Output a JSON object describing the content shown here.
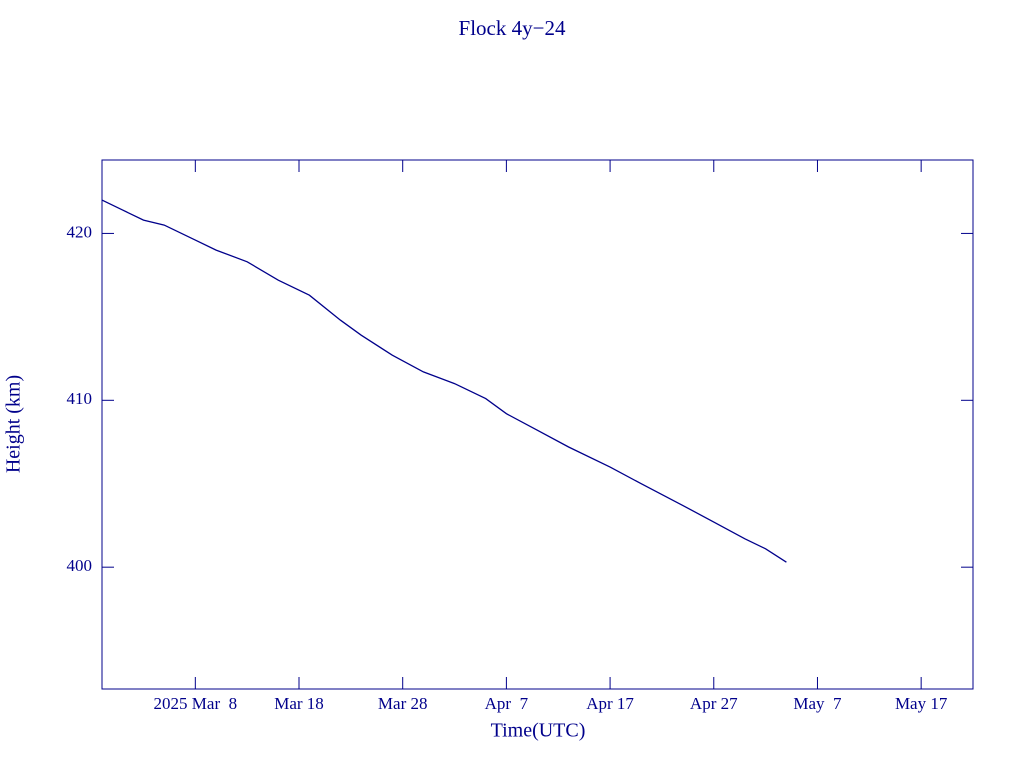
{
  "chart_data": {
    "type": "line",
    "title": "Flock 4y−24",
    "x_label": "Time(UTC)",
    "y_label": "Height (km)",
    "x": [
      "2025-02-27",
      "2025-03-01",
      "2025-03-03",
      "2025-03-05",
      "2025-03-08",
      "2025-03-10",
      "2025-03-13",
      "2025-03-16",
      "2025-03-19",
      "2025-03-22",
      "2025-03-24",
      "2025-03-27",
      "2025-03-30",
      "2025-04-02",
      "2025-04-05",
      "2025-04-07",
      "2025-04-10",
      "2025-04-13",
      "2025-04-17",
      "2025-04-20",
      "2025-04-24",
      "2025-04-27",
      "2025-04-30",
      "2025-05-02",
      "2025-05-04"
    ],
    "series": [
      {
        "name": "Height",
        "color": "#00008b",
        "values": [
          422.0,
          421.4,
          420.8,
          420.5,
          419.6,
          419.0,
          418.3,
          417.2,
          416.3,
          414.8,
          413.9,
          412.7,
          411.7,
          411.0,
          410.1,
          409.2,
          408.2,
          407.2,
          406.0,
          405.0,
          403.7,
          402.7,
          401.7,
          401.1,
          400.3
        ]
      }
    ],
    "xlim": [
      "2025-02-27",
      "2025-05-22"
    ],
    "xticks": [
      {
        "value": "2025-03-08",
        "label": "2025 Mar  8"
      },
      {
        "value": "2025-03-18",
        "label": "Mar 18"
      },
      {
        "value": "2025-03-28",
        "label": "Mar 28"
      },
      {
        "value": "2025-04-07",
        "label": "Apr  7"
      },
      {
        "value": "2025-04-17",
        "label": "Apr 17"
      },
      {
        "value": "2025-04-27",
        "label": "Apr 27"
      },
      {
        "value": "2025-05-07",
        "label": "May  7"
      },
      {
        "value": "2025-05-17",
        "label": "May 17"
      }
    ],
    "ylim": [
      392.7,
      424.4
    ],
    "yticks": [
      400,
      410,
      420
    ]
  }
}
